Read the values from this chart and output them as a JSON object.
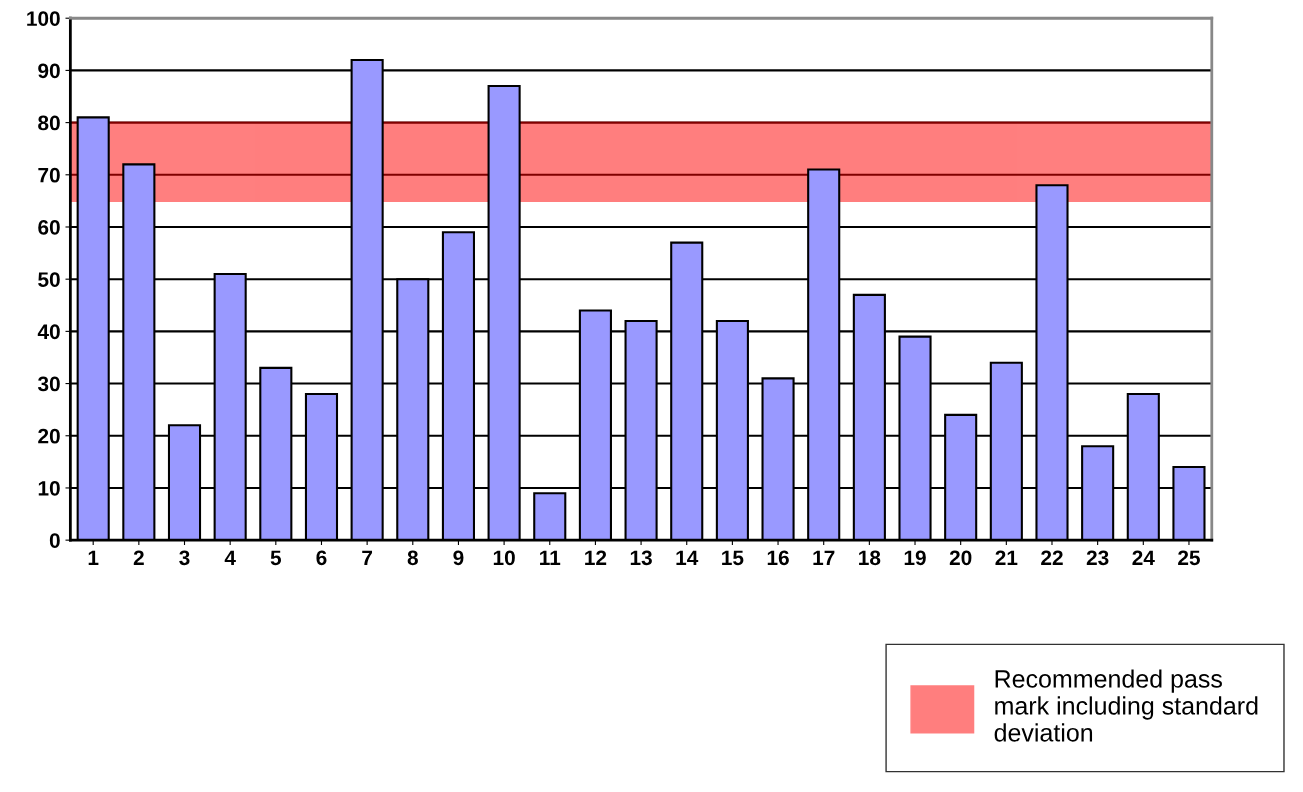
{
  "chart_data": {
    "type": "bar",
    "categories": [
      "1",
      "2",
      "3",
      "4",
      "5",
      "6",
      "7",
      "8",
      "9",
      "10",
      "11",
      "12",
      "13",
      "14",
      "15",
      "16",
      "17",
      "18",
      "19",
      "20",
      "21",
      "22",
      "23",
      "24",
      "25"
    ],
    "values": [
      81,
      72,
      22,
      51,
      33,
      28,
      92,
      50,
      59,
      87,
      9,
      44,
      42,
      57,
      42,
      31,
      71,
      47,
      39,
      24,
      34,
      68,
      18,
      28,
      14
    ],
    "color": "#9999ff",
    "ylim": [
      0,
      100
    ],
    "yticks": [
      0,
      10,
      20,
      30,
      40,
      50,
      60,
      70,
      80,
      90,
      100
    ],
    "grid": "y",
    "bands": [
      {
        "axis": "y",
        "from": 65,
        "to": 80,
        "label": "Recommended pass mark including standard deviation",
        "color": "#ff0000"
      }
    ],
    "legend": "bottom right"
  }
}
